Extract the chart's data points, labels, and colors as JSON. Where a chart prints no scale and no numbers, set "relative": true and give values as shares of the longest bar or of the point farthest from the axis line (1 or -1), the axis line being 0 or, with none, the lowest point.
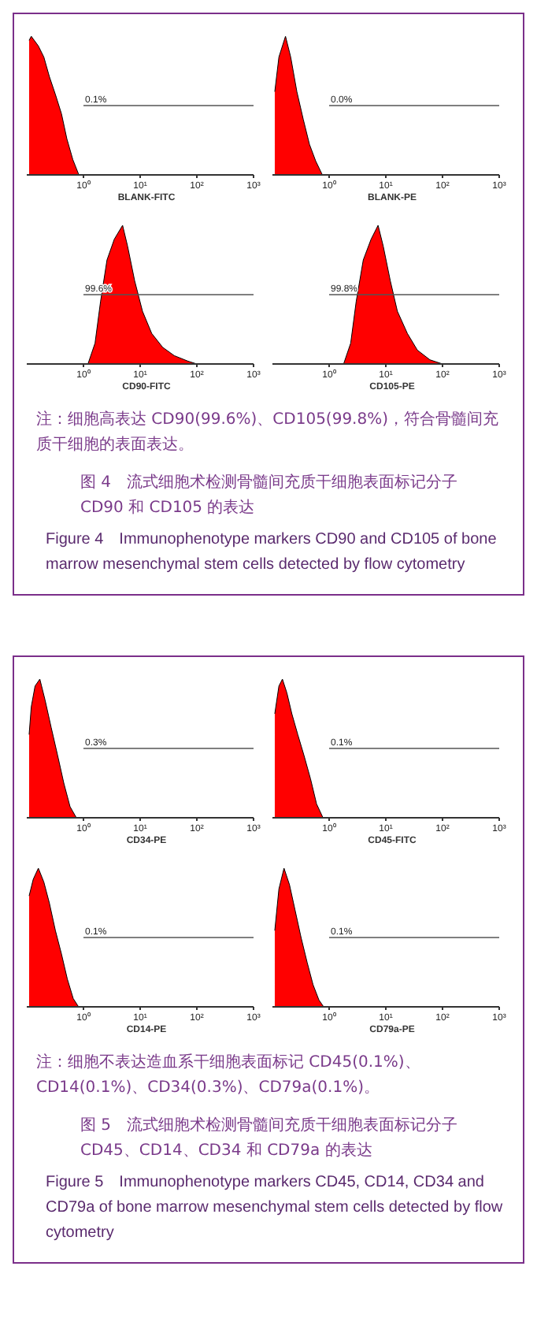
{
  "chart_data": [
    {
      "type": "area",
      "relative": true,
      "tick_labels": "x",
      "xlabel": "BLANK-FITC",
      "log": "x",
      "xlim": [
        0.1,
        1000
      ],
      "xticks": [
        {
          "value": 1,
          "label": "10⁰"
        },
        {
          "value": 10,
          "label": "10¹"
        },
        {
          "value": 100,
          "label": "10²"
        },
        {
          "value": 1000,
          "label": "10³"
        }
      ],
      "x": [
        0.11,
        0.12,
        0.16,
        0.2,
        0.25,
        0.32,
        0.41,
        0.51,
        0.65,
        0.83
      ],
      "series": [
        {
          "color": "#ff0000",
          "values": [
            0.97,
            1,
            0.93,
            0.85,
            0.71,
            0.58,
            0.44,
            0.26,
            0.11,
            0
          ]
        }
      ],
      "annotations": [
        "0.1%"
      ]
    },
    {
      "type": "area",
      "relative": true,
      "tick_labels": "x",
      "xlabel": "BLANK-PE",
      "log": "x",
      "xlim": [
        0.1,
        1000
      ],
      "xticks": [
        {
          "value": 1,
          "label": "10⁰"
        },
        {
          "value": 10,
          "label": "10¹"
        },
        {
          "value": 100,
          "label": "10²"
        },
        {
          "value": 1000,
          "label": "10³"
        }
      ],
      "x": [
        0.11,
        0.13,
        0.17,
        0.21,
        0.27,
        0.35,
        0.45,
        0.58,
        0.76
      ],
      "series": [
        {
          "color": "#ff0000",
          "values": [
            0.6,
            0.85,
            1,
            0.85,
            0.6,
            0.4,
            0.22,
            0.1,
            0
          ]
        }
      ],
      "annotations": [
        "0.0%"
      ]
    },
    {
      "type": "area",
      "relative": true,
      "tick_labels": "x",
      "xlabel": "CD90-FITC",
      "log": "x",
      "xlim": [
        0.1,
        1000
      ],
      "xticks": [
        {
          "value": 1,
          "label": "10⁰"
        },
        {
          "value": 10,
          "label": "10¹"
        },
        {
          "value": 100,
          "label": "10²"
        },
        {
          "value": 1000,
          "label": "10³"
        }
      ],
      "x": [
        1.2,
        1.6,
        2,
        2.6,
        3.5,
        4.9,
        6,
        8,
        11,
        16,
        25,
        40,
        70,
        100
      ],
      "series": [
        {
          "color": "#ff0000",
          "values": [
            0,
            0.15,
            0.45,
            0.75,
            0.9,
            1,
            0.85,
            0.6,
            0.38,
            0.22,
            0.12,
            0.06,
            0.02,
            0
          ]
        }
      ],
      "annotations": [
        "99.6%"
      ]
    },
    {
      "type": "area",
      "relative": true,
      "tick_labels": "x",
      "xlabel": "CD105-PE",
      "log": "x",
      "xlim": [
        0.1,
        1000
      ],
      "xticks": [
        {
          "value": 1,
          "label": "10⁰"
        },
        {
          "value": 10,
          "label": "10¹"
        },
        {
          "value": 100,
          "label": "10²"
        },
        {
          "value": 1000,
          "label": "10³"
        }
      ],
      "x": [
        1.8,
        2.4,
        3,
        4,
        5.5,
        7.3,
        9,
        12,
        16,
        24,
        36,
        60,
        100
      ],
      "series": [
        {
          "color": "#ff0000",
          "values": [
            0,
            0.15,
            0.45,
            0.75,
            0.9,
            1,
            0.85,
            0.6,
            0.38,
            0.22,
            0.1,
            0.03,
            0
          ]
        }
      ],
      "annotations": [
        "99.8%"
      ]
    },
    {
      "type": "other",
      "annotations": [
        "注：细胞高表达 CD90(99.6%)、CD105(99.8%)，符合骨髓间充质干细胞的表面表达。",
        "图 4　流式细胞术检测骨髓间充质干细胞表面标记分子 CD90 和 CD105 的表达",
        "Figure 4　Immunophenotype markers CD90 and CD105 of bone marrow mesenchymal stem cells detected by flow cytometry"
      ]
    },
    {
      "type": "area",
      "relative": true,
      "tick_labels": "x",
      "xlabel": "CD34-PE",
      "log": "x",
      "xlim": [
        0.1,
        1000
      ],
      "xticks": [
        {
          "value": 1,
          "label": "10⁰"
        },
        {
          "value": 10,
          "label": "10¹"
        },
        {
          "value": 100,
          "label": "10²"
        },
        {
          "value": 1000,
          "label": "10³"
        }
      ],
      "x": [
        0.11,
        0.12,
        0.14,
        0.17,
        0.21,
        0.27,
        0.35,
        0.45,
        0.58,
        0.75
      ],
      "series": [
        {
          "color": "#ff0000",
          "values": [
            0.6,
            0.8,
            0.95,
            1,
            0.85,
            0.65,
            0.45,
            0.25,
            0.08,
            0
          ]
        }
      ],
      "annotations": [
        "0.3%"
      ]
    },
    {
      "type": "area",
      "relative": true,
      "tick_labels": "x",
      "xlabel": "CD45-FITC",
      "log": "x",
      "xlim": [
        0.1,
        1000
      ],
      "xticks": [
        {
          "value": 1,
          "label": "10⁰"
        },
        {
          "value": 10,
          "label": "10¹"
        },
        {
          "value": 100,
          "label": "10²"
        },
        {
          "value": 1000,
          "label": "10³"
        }
      ],
      "x": [
        0.11,
        0.13,
        0.15,
        0.18,
        0.22,
        0.28,
        0.36,
        0.47,
        0.6,
        0.78
      ],
      "series": [
        {
          "color": "#ff0000",
          "values": [
            0.75,
            0.95,
            1,
            0.9,
            0.75,
            0.6,
            0.45,
            0.28,
            0.1,
            0
          ]
        }
      ],
      "annotations": [
        "0.1%"
      ]
    },
    {
      "type": "area",
      "relative": true,
      "tick_labels": "x",
      "xlabel": "CD14-PE",
      "log": "x",
      "xlim": [
        0.1,
        1000
      ],
      "xticks": [
        {
          "value": 1,
          "label": "10⁰"
        },
        {
          "value": 10,
          "label": "10¹"
        },
        {
          "value": 100,
          "label": "10²"
        },
        {
          "value": 1000,
          "label": "10³"
        }
      ],
      "x": [
        0.11,
        0.13,
        0.16,
        0.2,
        0.25,
        0.32,
        0.41,
        0.52,
        0.66,
        0.82
      ],
      "series": [
        {
          "color": "#ff0000",
          "values": [
            0.8,
            0.92,
            1,
            0.9,
            0.75,
            0.55,
            0.38,
            0.2,
            0.06,
            0
          ]
        }
      ],
      "annotations": [
        "0.1%"
      ]
    },
    {
      "type": "area",
      "relative": true,
      "tick_labels": "x",
      "xlabel": "CD79a-PE",
      "log": "x",
      "xlim": [
        0.1,
        1000
      ],
      "xticks": [
        {
          "value": 1,
          "label": "10⁰"
        },
        {
          "value": 10,
          "label": "10¹"
        },
        {
          "value": 100,
          "label": "10²"
        },
        {
          "value": 1000,
          "label": "10³"
        }
      ],
      "x": [
        0.11,
        0.13,
        0.16,
        0.2,
        0.25,
        0.32,
        0.41,
        0.52,
        0.66,
        0.8
      ],
      "series": [
        {
          "color": "#ff0000",
          "values": [
            0.55,
            0.85,
            1,
            0.88,
            0.7,
            0.5,
            0.32,
            0.16,
            0.05,
            0
          ]
        }
      ],
      "annotations": [
        "0.1%"
      ]
    },
    {
      "type": "other",
      "annotations": [
        "注：细胞不表达造血系干细胞表面标记 CD45(0.1%)、CD14(0.1%)、CD34(0.3%)、CD79a(0.1%)。",
        "图 5　流式细胞术检测骨髓间充质干细胞表面标记分子 CD45、CD14、CD34 和 CD79a 的表达",
        "Figure 5　Immunophenotype markers CD45, CD14, CD34 and CD79a of bone marrow mesenchymal stem cells detected by flow cytometry"
      ]
    }
  ]
}
